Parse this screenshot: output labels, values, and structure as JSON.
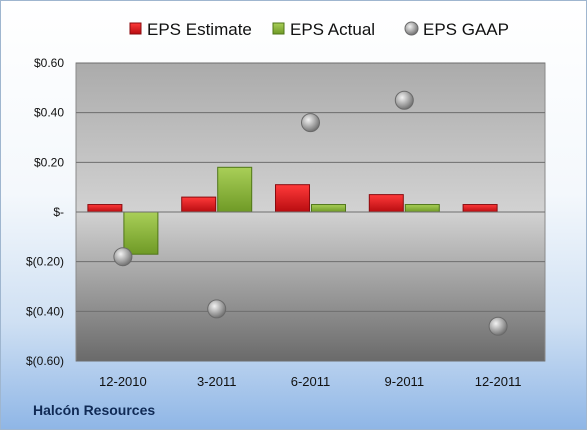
{
  "footer": "Halcón Resources",
  "chart_data": {
    "type": "bar",
    "categories": [
      "12-2010",
      "3-2011",
      "6-2011",
      "9-2011",
      "12-2011"
    ],
    "series": [
      {
        "name": "EPS Estimate",
        "kind": "bar",
        "color": "#d8141c",
        "values": [
          0.03,
          0.06,
          0.11,
          0.07,
          0.03
        ]
      },
      {
        "name": "EPS Actual",
        "kind": "bar",
        "color": "#8fbd3a",
        "values": [
          -0.17,
          0.18,
          0.03,
          0.03,
          null
        ]
      },
      {
        "name": "EPS GAAP",
        "kind": "scatter",
        "color": "#9a9a9a",
        "values": [
          -0.18,
          -0.39,
          0.36,
          0.45,
          -0.46
        ]
      }
    ],
    "ylim": [
      -0.6,
      0.6
    ],
    "yticks": [
      0.6,
      0.4,
      0.2,
      0,
      -0.2,
      -0.4,
      -0.6
    ],
    "ytick_labels": [
      "$0.60",
      "$0.40",
      "$0.20",
      "$-",
      "$(0.20)",
      "$(0.40)",
      "$(0.60)"
    ],
    "grid": true,
    "legend": "top"
  }
}
